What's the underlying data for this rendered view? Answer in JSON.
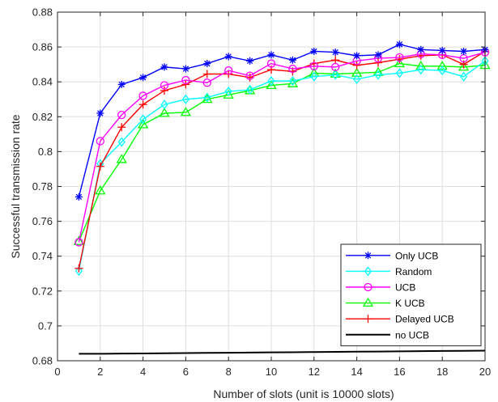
{
  "chart_data": {
    "type": "line",
    "title": "",
    "xlabel": "Number of slots (unit is 10000 slots)",
    "ylabel": "Successful transmission rate",
    "xlim": [
      0,
      20
    ],
    "ylim": [
      0.68,
      0.88
    ],
    "xticks": [
      0,
      2,
      4,
      6,
      8,
      10,
      12,
      14,
      16,
      18,
      20
    ],
    "yticks": [
      0.68,
      0.7,
      0.72,
      0.74,
      0.76,
      0.78,
      0.8,
      0.82,
      0.84,
      0.86,
      0.88
    ],
    "xtick_labels": [
      "0",
      "2",
      "4",
      "6",
      "8",
      "10",
      "12",
      "14",
      "16",
      "18",
      "20"
    ],
    "ytick_labels": [
      "0.68",
      "0.7",
      "0.72",
      "0.74",
      "0.76",
      "0.78",
      "0.8",
      "0.82",
      "0.84",
      "0.86",
      "0.88"
    ],
    "grid": true,
    "legend_position": "bottom-right",
    "x": [
      1,
      2,
      3,
      4,
      5,
      6,
      7,
      8,
      9,
      10,
      11,
      12,
      13,
      14,
      15,
      16,
      17,
      18,
      19,
      20
    ],
    "series": [
      {
        "name": "Only UCB",
        "color": "#0000FF",
        "marker": "star",
        "values": [
          0.774,
          0.822,
          0.8385,
          0.8425,
          0.8485,
          0.8475,
          0.8505,
          0.8545,
          0.852,
          0.8555,
          0.8525,
          0.8575,
          0.857,
          0.855,
          0.8555,
          0.8615,
          0.8585,
          0.858,
          0.8575,
          0.8585
        ]
      },
      {
        "name": "Random",
        "color": "#00FFFF",
        "marker": "diamond",
        "values": [
          0.7315,
          0.793,
          0.8055,
          0.8185,
          0.827,
          0.83,
          0.831,
          0.8345,
          0.8355,
          0.8405,
          0.8405,
          0.843,
          0.844,
          0.8415,
          0.844,
          0.845,
          0.847,
          0.8465,
          0.843,
          0.852
        ]
      },
      {
        "name": "UCB",
        "color": "#FF00FF",
        "marker": "circle",
        "values": [
          0.748,
          0.806,
          0.821,
          0.832,
          0.838,
          0.841,
          0.8395,
          0.8465,
          0.8435,
          0.8505,
          0.8475,
          0.849,
          0.8485,
          0.852,
          0.8535,
          0.854,
          0.856,
          0.8555,
          0.8535,
          0.857
        ]
      },
      {
        "name": "K UCB",
        "color": "#00FF00",
        "marker": "triangle",
        "values": [
          0.7485,
          0.7775,
          0.7955,
          0.8155,
          0.822,
          0.8225,
          0.83,
          0.8325,
          0.835,
          0.838,
          0.839,
          0.845,
          0.8445,
          0.845,
          0.8455,
          0.8505,
          0.849,
          0.849,
          0.8485,
          0.8495
        ]
      },
      {
        "name": "Delayed UCB",
        "color": "#FF0000",
        "marker": "plus",
        "values": [
          0.733,
          0.7915,
          0.814,
          0.827,
          0.835,
          0.8385,
          0.8445,
          0.8445,
          0.8425,
          0.847,
          0.846,
          0.8505,
          0.8525,
          0.8495,
          0.851,
          0.853,
          0.855,
          0.8555,
          0.85,
          0.8575
        ]
      },
      {
        "name": "no UCB",
        "color": "#000000",
        "marker": "none",
        "values": [
          0.684,
          0.684,
          0.6841,
          0.6842,
          0.6843,
          0.6844,
          0.6845,
          0.6846,
          0.6847,
          0.6848,
          0.6849,
          0.685,
          0.6851,
          0.6852,
          0.6853,
          0.6854,
          0.6855,
          0.6856,
          0.6857,
          0.6858
        ]
      }
    ]
  }
}
